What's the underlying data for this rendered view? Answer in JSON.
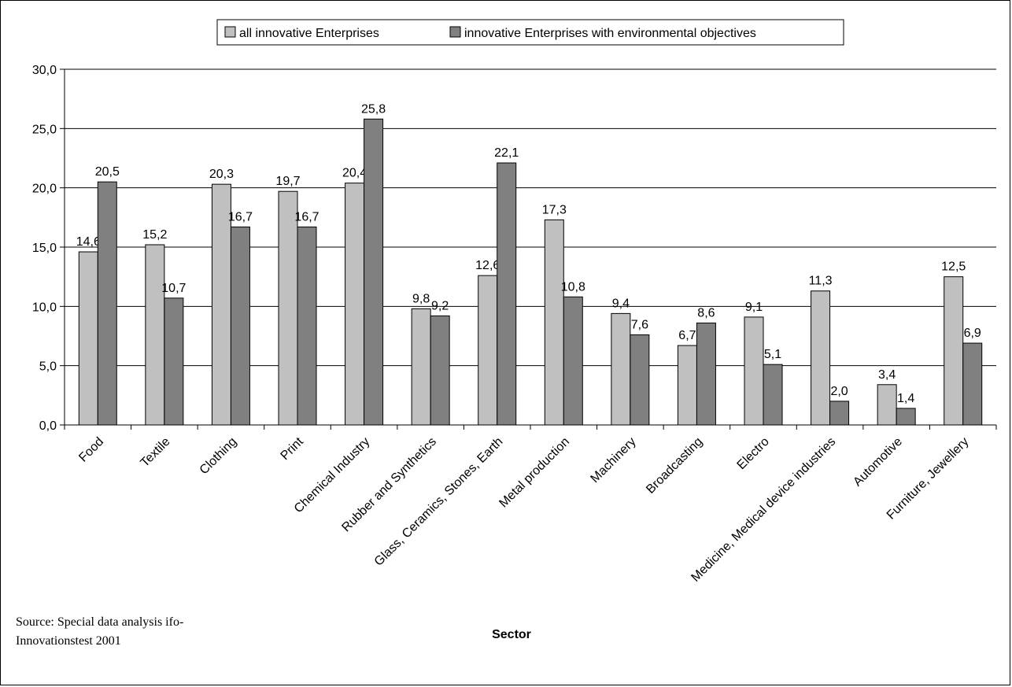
{
  "chart_data": {
    "type": "bar",
    "title": "",
    "xlabel": "Sector",
    "ylabel": "",
    "ylim": [
      0,
      30
    ],
    "yticks": [
      "0,0",
      "5,0",
      "10,0",
      "15,0",
      "20,0",
      "25,0",
      "30,0"
    ],
    "grid": true,
    "legend_position": "top-center",
    "categories": [
      "Food",
      "Textile",
      "Clothing",
      "Print",
      "Chemical Industry",
      "Rubber and Synthetics",
      "Glass, Ceramics, Stones, Earth",
      "Metal production",
      "Machinery",
      "Broadcasting",
      "Electro",
      "Medicine, Medical device industries",
      "Automotive",
      "Furniture, Jewellery"
    ],
    "series": [
      {
        "name": "all innovative Enterprises",
        "color": "#c0c0c0",
        "values": [
          14.6,
          15.2,
          20.3,
          19.7,
          20.4,
          9.8,
          12.6,
          17.3,
          9.4,
          6.7,
          9.1,
          11.3,
          3.4,
          12.5
        ],
        "labels": [
          "14,6",
          "15,2",
          "20,3",
          "19,7",
          "20,4",
          "9,8",
          "12,6",
          "17,3",
          "9,4",
          "6,7",
          "9,1",
          "11,3",
          "3,4",
          "12,5"
        ]
      },
      {
        "name": "innovative Enterprises with environmental objectives",
        "color": "#808080",
        "values": [
          20.5,
          10.7,
          16.7,
          16.7,
          25.8,
          9.2,
          22.1,
          10.8,
          7.6,
          8.6,
          5.1,
          2.0,
          1.4,
          6.9
        ],
        "labels": [
          "20,5",
          "10,7",
          "16,7",
          "16,7",
          "25,8",
          "9,2",
          "22,1",
          "10,8",
          "7,6",
          "8,6",
          "5,1",
          "2,0",
          "1,4",
          "6,9"
        ]
      }
    ]
  },
  "source": {
    "line1": "Source: Special data analysis ifo-",
    "line2": "Innovationstest 2001"
  }
}
